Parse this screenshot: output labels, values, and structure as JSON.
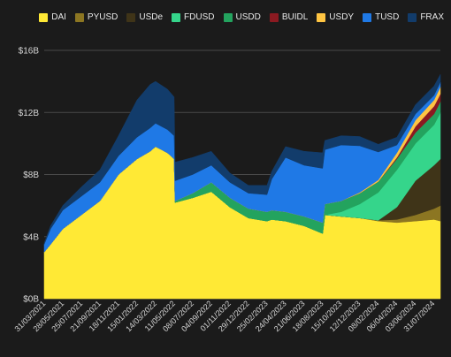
{
  "chart_data": {
    "type": "area",
    "stacked": true,
    "legend_position": "top-right",
    "grid": true,
    "x_unit": "date",
    "x_tick_labels": [
      "31/03/2021",
      "28/05/2021",
      "25/07/2021",
      "21/09/2021",
      "18/11/2021",
      "15/01/2022",
      "14/03/2022",
      "11/05/2022",
      "08/07/2022",
      "04/09/2022",
      "01/11/2022",
      "29/12/2022",
      "25/02/2023",
      "24/04/2023",
      "21/06/2023",
      "18/08/2023",
      "15/10/2023",
      "12/12/2023",
      "08/02/2024",
      "06/04/2024",
      "03/06/2024",
      "31/07/2024"
    ],
    "y_tick_labels": [
      "$0B",
      "$4B",
      "$8B",
      "$12B",
      "$16B"
    ],
    "ylim": [
      0,
      16
    ],
    "y_unit": "$B",
    "x": [
      "2021-03-31",
      "2021-04-20",
      "2021-05-28",
      "2021-07-25",
      "2021-09-21",
      "2021-11-18",
      "2022-01-15",
      "2022-02-25",
      "2022-03-14",
      "2022-04-20",
      "2022-05-11",
      "2022-05-14",
      "2022-07-08",
      "2022-09-04",
      "2022-11-01",
      "2022-12-29",
      "2023-02-25",
      "2023-03-12",
      "2023-04-24",
      "2023-06-21",
      "2023-08-18",
      "2023-08-25",
      "2023-10-15",
      "2023-12-12",
      "2024-02-08",
      "2024-04-06",
      "2024-06-03",
      "2024-07-31",
      "2024-08-20"
    ],
    "series": [
      {
        "name": "DAI",
        "color": "#ffe935",
        "values": [
          3.0,
          3.5,
          4.5,
          5.4,
          6.3,
          8.0,
          9.0,
          9.5,
          9.8,
          9.4,
          9.0,
          6.2,
          6.5,
          6.9,
          5.9,
          5.2,
          5.0,
          5.1,
          5.0,
          4.7,
          4.2,
          5.4,
          5.3,
          5.2,
          5.0,
          4.9,
          5.0,
          5.1,
          5.0
        ]
      },
      {
        "name": "PYUSD",
        "color": "#8c7622",
        "values": [
          0,
          0,
          0,
          0,
          0,
          0,
          0,
          0,
          0,
          0,
          0,
          0,
          0,
          0,
          0,
          0,
          0,
          0,
          0,
          0,
          0,
          0,
          0,
          0,
          0.05,
          0.2,
          0.4,
          0.7,
          1.0
        ]
      },
      {
        "name": "USDe",
        "color": "#3f3418",
        "values": [
          0,
          0,
          0,
          0,
          0,
          0,
          0,
          0,
          0,
          0,
          0,
          0,
          0,
          0,
          0,
          0,
          0,
          0,
          0,
          0,
          0,
          0,
          0,
          0,
          0,
          0.8,
          2.2,
          2.8,
          3.0
        ]
      },
      {
        "name": "FDUSD",
        "color": "#35d58b",
        "values": [
          0,
          0,
          0,
          0,
          0,
          0,
          0,
          0,
          0,
          0,
          0,
          0,
          0,
          0,
          0,
          0,
          0,
          0,
          0,
          0,
          0,
          0,
          0.3,
          0.9,
          1.8,
          2.4,
          2.4,
          2.6,
          3.0
        ]
      },
      {
        "name": "USDD",
        "color": "#23a35e",
        "values": [
          0,
          0,
          0,
          0,
          0,
          0,
          0,
          0,
          0,
          0,
          0,
          0.1,
          0.3,
          0.6,
          0.6,
          0.6,
          0.6,
          0.6,
          0.6,
          0.6,
          0.7,
          0.7,
          0.7,
          0.7,
          0.7,
          0.7,
          0.7,
          0.7,
          0.7
        ]
      },
      {
        "name": "BUIDL",
        "color": "#8b1a21",
        "values": [
          0,
          0,
          0,
          0,
          0,
          0,
          0,
          0,
          0,
          0,
          0,
          0,
          0,
          0,
          0,
          0,
          0,
          0,
          0,
          0,
          0,
          0,
          0,
          0,
          0,
          0.1,
          0.4,
          0.5,
          0.5
        ]
      },
      {
        "name": "USDY",
        "color": "#ffc542",
        "values": [
          0,
          0,
          0,
          0,
          0,
          0,
          0,
          0,
          0,
          0,
          0,
          0,
          0,
          0,
          0,
          0,
          0,
          0,
          0,
          0,
          0,
          0,
          0,
          0.05,
          0.1,
          0.3,
          0.4,
          0.4,
          0.45
        ]
      },
      {
        "name": "TUSD",
        "color": "#1f79e6",
        "values": [
          0.5,
          1.0,
          1.2,
          1.2,
          1.2,
          1.2,
          1.4,
          1.5,
          1.5,
          1.5,
          1.5,
          1.3,
          1.2,
          1.1,
          1.0,
          1.0,
          1.1,
          2.0,
          3.5,
          3.3,
          3.5,
          3.5,
          3.6,
          3.0,
          1.8,
          0.5,
          0.4,
          0.3,
          0.3
        ]
      },
      {
        "name": "FRAX",
        "color": "#123c6b",
        "values": [
          0.1,
          0.2,
          0.3,
          0.6,
          0.8,
          1.3,
          2.4,
          2.8,
          2.7,
          2.6,
          2.5,
          1.2,
          1.1,
          0.9,
          0.6,
          0.5,
          0.6,
          0.5,
          0.7,
          0.9,
          1.0,
          0.6,
          0.6,
          0.6,
          0.5,
          0.5,
          0.6,
          0.6,
          0.5
        ]
      }
    ]
  }
}
